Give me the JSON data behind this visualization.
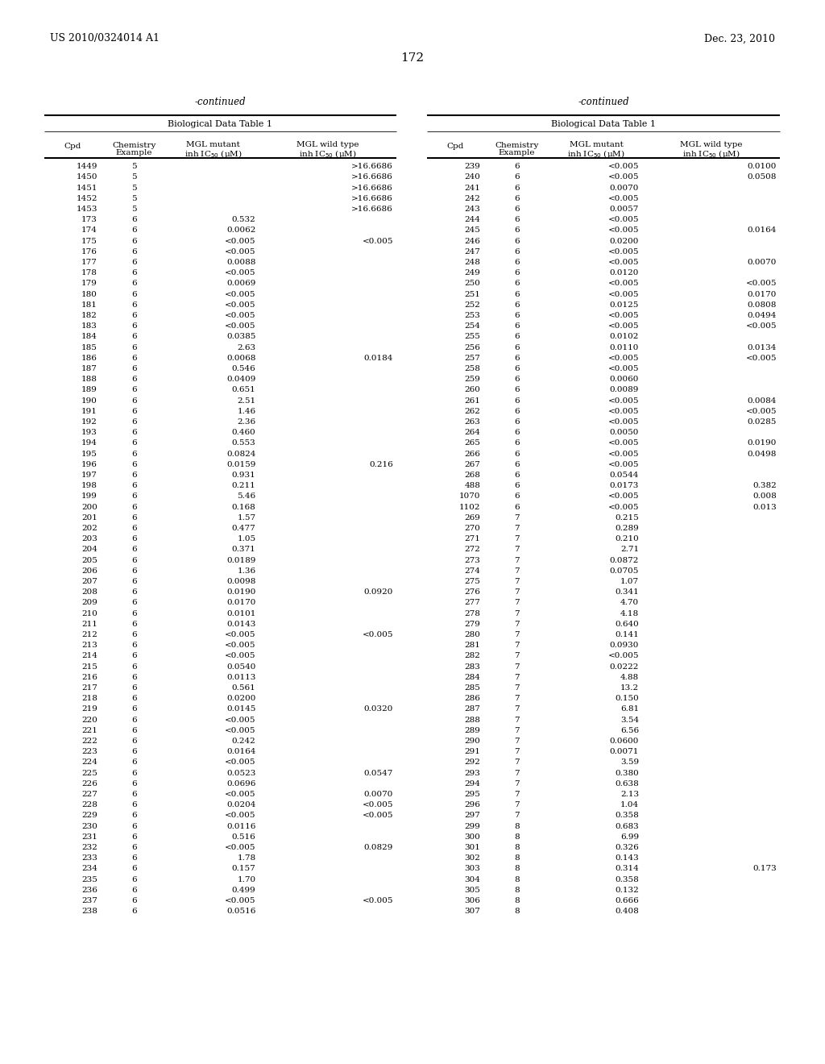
{
  "patent_number": "US 2010/0324014 A1",
  "patent_date": "Dec. 23, 2010",
  "page_number": "172",
  "table_title": "Biological Data Table 1",
  "left_table": [
    [
      "1449",
      "5",
      "",
      ">16.6686"
    ],
    [
      "1450",
      "5",
      "",
      ">16.6686"
    ],
    [
      "1451",
      "5",
      "",
      ">16.6686"
    ],
    [
      "1452",
      "5",
      "",
      ">16.6686"
    ],
    [
      "1453",
      "5",
      "",
      ">16.6686"
    ],
    [
      "173",
      "6",
      "0.532",
      ""
    ],
    [
      "174",
      "6",
      "0.0062",
      ""
    ],
    [
      "175",
      "6",
      "<0.005",
      "<0.005"
    ],
    [
      "176",
      "6",
      "<0.005",
      ""
    ],
    [
      "177",
      "6",
      "0.0088",
      ""
    ],
    [
      "178",
      "6",
      "<0.005",
      ""
    ],
    [
      "179",
      "6",
      "0.0069",
      ""
    ],
    [
      "180",
      "6",
      "<0.005",
      ""
    ],
    [
      "181",
      "6",
      "<0.005",
      ""
    ],
    [
      "182",
      "6",
      "<0.005",
      ""
    ],
    [
      "183",
      "6",
      "<0.005",
      ""
    ],
    [
      "184",
      "6",
      "0.0385",
      ""
    ],
    [
      "185",
      "6",
      "2.63",
      ""
    ],
    [
      "186",
      "6",
      "0.0068",
      "0.0184"
    ],
    [
      "187",
      "6",
      "0.546",
      ""
    ],
    [
      "188",
      "6",
      "0.0409",
      ""
    ],
    [
      "189",
      "6",
      "0.651",
      ""
    ],
    [
      "190",
      "6",
      "2.51",
      ""
    ],
    [
      "191",
      "6",
      "1.46",
      ""
    ],
    [
      "192",
      "6",
      "2.36",
      ""
    ],
    [
      "193",
      "6",
      "0.460",
      ""
    ],
    [
      "194",
      "6",
      "0.553",
      ""
    ],
    [
      "195",
      "6",
      "0.0824",
      ""
    ],
    [
      "196",
      "6",
      "0.0159",
      "0.216"
    ],
    [
      "197",
      "6",
      "0.931",
      ""
    ],
    [
      "198",
      "6",
      "0.211",
      ""
    ],
    [
      "199",
      "6",
      "5.46",
      ""
    ],
    [
      "200",
      "6",
      "0.168",
      ""
    ],
    [
      "201",
      "6",
      "1.57",
      ""
    ],
    [
      "202",
      "6",
      "0.477",
      ""
    ],
    [
      "203",
      "6",
      "1.05",
      ""
    ],
    [
      "204",
      "6",
      "0.371",
      ""
    ],
    [
      "205",
      "6",
      "0.0189",
      ""
    ],
    [
      "206",
      "6",
      "1.36",
      ""
    ],
    [
      "207",
      "6",
      "0.0098",
      ""
    ],
    [
      "208",
      "6",
      "0.0190",
      "0.0920"
    ],
    [
      "209",
      "6",
      "0.0170",
      ""
    ],
    [
      "210",
      "6",
      "0.0101",
      ""
    ],
    [
      "211",
      "6",
      "0.0143",
      ""
    ],
    [
      "212",
      "6",
      "<0.005",
      "<0.005"
    ],
    [
      "213",
      "6",
      "<0.005",
      ""
    ],
    [
      "214",
      "6",
      "<0.005",
      ""
    ],
    [
      "215",
      "6",
      "0.0540",
      ""
    ],
    [
      "216",
      "6",
      "0.0113",
      ""
    ],
    [
      "217",
      "6",
      "0.561",
      ""
    ],
    [
      "218",
      "6",
      "0.0200",
      ""
    ],
    [
      "219",
      "6",
      "0.0145",
      "0.0320"
    ],
    [
      "220",
      "6",
      "<0.005",
      ""
    ],
    [
      "221",
      "6",
      "<0.005",
      ""
    ],
    [
      "222",
      "6",
      "0.242",
      ""
    ],
    [
      "223",
      "6",
      "0.0164",
      ""
    ],
    [
      "224",
      "6",
      "<0.005",
      ""
    ],
    [
      "225",
      "6",
      "0.0523",
      "0.0547"
    ],
    [
      "226",
      "6",
      "0.0696",
      ""
    ],
    [
      "227",
      "6",
      "<0.005",
      "0.0070"
    ],
    [
      "228",
      "6",
      "0.0204",
      "<0.005"
    ],
    [
      "229",
      "6",
      "<0.005",
      "<0.005"
    ],
    [
      "230",
      "6",
      "0.0116",
      ""
    ],
    [
      "231",
      "6",
      "0.516",
      ""
    ],
    [
      "232",
      "6",
      "<0.005",
      "0.0829"
    ],
    [
      "233",
      "6",
      "1.78",
      ""
    ],
    [
      "234",
      "6",
      "0.157",
      ""
    ],
    [
      "235",
      "6",
      "1.70",
      ""
    ],
    [
      "236",
      "6",
      "0.499",
      ""
    ],
    [
      "237",
      "6",
      "<0.005",
      "<0.005"
    ],
    [
      "238",
      "6",
      "0.0516",
      ""
    ]
  ],
  "right_table": [
    [
      "239",
      "6",
      "<0.005",
      "0.0100"
    ],
    [
      "240",
      "6",
      "<0.005",
      "0.0508"
    ],
    [
      "241",
      "6",
      "0.0070",
      ""
    ],
    [
      "242",
      "6",
      "<0.005",
      ""
    ],
    [
      "243",
      "6",
      "0.0057",
      ""
    ],
    [
      "244",
      "6",
      "<0.005",
      ""
    ],
    [
      "245",
      "6",
      "<0.005",
      "0.0164"
    ],
    [
      "246",
      "6",
      "0.0200",
      ""
    ],
    [
      "247",
      "6",
      "<0.005",
      ""
    ],
    [
      "248",
      "6",
      "<0.005",
      "0.0070"
    ],
    [
      "249",
      "6",
      "0.0120",
      ""
    ],
    [
      "250",
      "6",
      "<0.005",
      "<0.005"
    ],
    [
      "251",
      "6",
      "<0.005",
      "0.0170"
    ],
    [
      "252",
      "6",
      "0.0125",
      "0.0808"
    ],
    [
      "253",
      "6",
      "<0.005",
      "0.0494"
    ],
    [
      "254",
      "6",
      "<0.005",
      "<0.005"
    ],
    [
      "255",
      "6",
      "0.0102",
      ""
    ],
    [
      "256",
      "6",
      "0.0110",
      "0.0134"
    ],
    [
      "257",
      "6",
      "<0.005",
      "<0.005"
    ],
    [
      "258",
      "6",
      "<0.005",
      ""
    ],
    [
      "259",
      "6",
      "0.0060",
      ""
    ],
    [
      "260",
      "6",
      "0.0089",
      ""
    ],
    [
      "261",
      "6",
      "<0.005",
      "0.0084"
    ],
    [
      "262",
      "6",
      "<0.005",
      "<0.005"
    ],
    [
      "263",
      "6",
      "<0.005",
      "0.0285"
    ],
    [
      "264",
      "6",
      "0.0050",
      ""
    ],
    [
      "265",
      "6",
      "<0.005",
      "0.0190"
    ],
    [
      "266",
      "6",
      "<0.005",
      "0.0498"
    ],
    [
      "267",
      "6",
      "<0.005",
      ""
    ],
    [
      "268",
      "6",
      "0.0544",
      ""
    ],
    [
      "488",
      "6",
      "0.0173",
      "0.382"
    ],
    [
      "1070",
      "6",
      "<0.005",
      "0.008"
    ],
    [
      "1102",
      "6",
      "<0.005",
      "0.013"
    ],
    [
      "269",
      "7",
      "0.215",
      ""
    ],
    [
      "270",
      "7",
      "0.289",
      ""
    ],
    [
      "271",
      "7",
      "0.210",
      ""
    ],
    [
      "272",
      "7",
      "2.71",
      ""
    ],
    [
      "273",
      "7",
      "0.0872",
      ""
    ],
    [
      "274",
      "7",
      "0.0705",
      ""
    ],
    [
      "275",
      "7",
      "1.07",
      ""
    ],
    [
      "276",
      "7",
      "0.341",
      ""
    ],
    [
      "277",
      "7",
      "4.70",
      ""
    ],
    [
      "278",
      "7",
      "4.18",
      ""
    ],
    [
      "279",
      "7",
      "0.640",
      ""
    ],
    [
      "280",
      "7",
      "0.141",
      ""
    ],
    [
      "281",
      "7",
      "0.0930",
      ""
    ],
    [
      "282",
      "7",
      "<0.005",
      ""
    ],
    [
      "283",
      "7",
      "0.0222",
      ""
    ],
    [
      "284",
      "7",
      "4.88",
      ""
    ],
    [
      "285",
      "7",
      "13.2",
      ""
    ],
    [
      "286",
      "7",
      "0.150",
      ""
    ],
    [
      "287",
      "7",
      "6.81",
      ""
    ],
    [
      "288",
      "7",
      "3.54",
      ""
    ],
    [
      "289",
      "7",
      "6.56",
      ""
    ],
    [
      "290",
      "7",
      "0.0600",
      ""
    ],
    [
      "291",
      "7",
      "0.0071",
      ""
    ],
    [
      "292",
      "7",
      "3.59",
      ""
    ],
    [
      "293",
      "7",
      "0.380",
      ""
    ],
    [
      "294",
      "7",
      "0.638",
      ""
    ],
    [
      "295",
      "7",
      "2.13",
      ""
    ],
    [
      "296",
      "7",
      "1.04",
      ""
    ],
    [
      "297",
      "7",
      "0.358",
      ""
    ],
    [
      "299",
      "8",
      "0.683",
      ""
    ],
    [
      "300",
      "8",
      "6.99",
      ""
    ],
    [
      "301",
      "8",
      "0.326",
      ""
    ],
    [
      "302",
      "8",
      "0.143",
      ""
    ],
    [
      "303",
      "8",
      "0.314",
      "0.173"
    ],
    [
      "304",
      "8",
      "0.358",
      ""
    ],
    [
      "305",
      "8",
      "0.132",
      ""
    ],
    [
      "306",
      "8",
      "0.666",
      ""
    ],
    [
      "307",
      "8",
      "0.408",
      ""
    ]
  ]
}
